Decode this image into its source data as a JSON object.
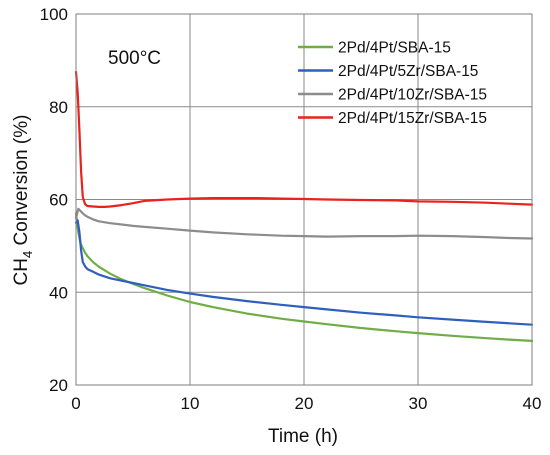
{
  "chart_data": {
    "type": "line",
    "annotation": "500°C",
    "xlabel": "Time (h)",
    "ylabel_main": "CH",
    "ylabel_sub": "4",
    "ylabel_rest": " Conversion (%)",
    "xlim": [
      0,
      40
    ],
    "ylim": [
      20,
      100
    ],
    "x_ticks": [
      0,
      10,
      20,
      30,
      40
    ],
    "y_ticks": [
      20,
      40,
      60,
      80,
      100
    ],
    "grid": true,
    "legend_position": "top-right",
    "series": [
      {
        "name": "2Pd/4Pt/SBA-15",
        "color": "#70ad47",
        "x": [
          0,
          0.2,
          0.4,
          0.6,
          0.8,
          1,
          1.5,
          2,
          3,
          4,
          5,
          6,
          8,
          10,
          12,
          15,
          18,
          20,
          22,
          25,
          28,
          30,
          33,
          36,
          38,
          40
        ],
        "y": [
          57,
          53,
          50.5,
          49.5,
          48.5,
          47.8,
          46.5,
          45.5,
          44,
          42.8,
          41.8,
          40.9,
          39.3,
          37.9,
          36.8,
          35.4,
          34.3,
          33.7,
          33.1,
          32.3,
          31.6,
          31.2,
          30.6,
          30.1,
          29.8,
          29.5
        ]
      },
      {
        "name": "2Pd/4Pt/5Zr/SBA-15",
        "color": "#2e5fbf",
        "x": [
          0,
          0.15,
          0.3,
          0.45,
          0.6,
          0.8,
          1,
          1.5,
          2,
          3,
          4,
          5,
          6,
          8,
          10,
          12,
          15,
          18,
          20,
          22,
          25,
          28,
          30,
          33,
          36,
          38,
          40
        ],
        "y": [
          55,
          55.5,
          53,
          49,
          46.5,
          45.6,
          45,
          44.4,
          43.8,
          43,
          42.5,
          42,
          41.5,
          40.5,
          39.7,
          39,
          38.1,
          37.3,
          36.8,
          36.3,
          35.6,
          35,
          34.6,
          34.1,
          33.6,
          33.3,
          33
        ]
      },
      {
        "name": "2Pd/4Pt/10Zr/SBA-15",
        "color": "#8c8c8c",
        "x": [
          0,
          0.2,
          0.4,
          0.6,
          0.8,
          1,
          1.5,
          2,
          3,
          4,
          5,
          6,
          8,
          10,
          12,
          15,
          18,
          20,
          22,
          25,
          28,
          30,
          33,
          36,
          38,
          40
        ],
        "y": [
          56,
          58,
          57.5,
          57,
          56.6,
          56.3,
          55.7,
          55.3,
          54.9,
          54.6,
          54.3,
          54.1,
          53.7,
          53.3,
          52.9,
          52.5,
          52.2,
          52.1,
          52,
          52.1,
          52.1,
          52.2,
          52.1,
          51.9,
          51.7,
          51.6
        ]
      },
      {
        "name": "2Pd/4Pt/15Zr/SBA-15",
        "color": "#e8221c",
        "x": [
          0,
          0.15,
          0.3,
          0.45,
          0.6,
          0.8,
          1,
          1.5,
          2,
          2.5,
          3,
          4,
          5,
          6,
          8,
          10,
          12,
          14,
          16,
          18,
          20,
          22,
          25,
          28,
          30,
          33,
          36,
          38,
          40
        ],
        "y": [
          87.5,
          83,
          75,
          66,
          60.5,
          59,
          58.6,
          58.5,
          58.4,
          58.4,
          58.5,
          58.8,
          59.2,
          59.7,
          60,
          60.2,
          60.3,
          60.3,
          60.3,
          60.2,
          60.1,
          60,
          59.9,
          59.8,
          59.6,
          59.5,
          59.3,
          59.1,
          58.9
        ]
      }
    ]
  }
}
